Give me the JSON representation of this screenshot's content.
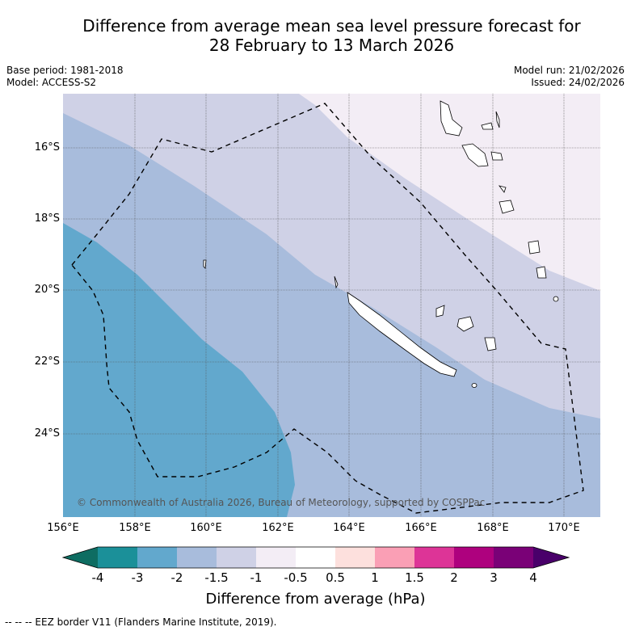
{
  "title_line1": "Difference from average mean sea level pressure forecast for",
  "title_line2": "28 February to 13 March 2026",
  "base_period": "Base period: 1981-2018",
  "model": "Model: ACCESS-S2",
  "model_run": "Model run: 21/02/2026",
  "issued": "Issued: 24/02/2026",
  "latitudes": [
    "16°S",
    "18°S",
    "20°S",
    "22°S",
    "24°S"
  ],
  "longitudes": [
    "156°E",
    "158°E",
    "160°E",
    "162°E",
    "164°E",
    "166°E",
    "168°E",
    "170°E"
  ],
  "copyright": "© Commonwealth of Australia 2026, Bureau of Meteorology, supported by COSPPac",
  "colorbar": {
    "ticks": [
      "-4",
      "-3",
      "-2",
      "-1.5",
      "-1",
      "-0.5",
      "0.5",
      "1",
      "1.5",
      "2",
      "3",
      "4"
    ],
    "colors": [
      "#0e6d62",
      "#1b9099",
      "#62a8cd",
      "#a8bcdc",
      "#cfd1e6",
      "#f3edf5",
      "#ffffff",
      "#fde0dd",
      "#fa9fb5",
      "#dd3497",
      "#ae017e",
      "#7a0177",
      "#49006a"
    ],
    "title": "Difference from average (hPa)"
  },
  "legend": "--  --  -- EEZ border V11 (Flanders Marine Institute, 2019)."
}
